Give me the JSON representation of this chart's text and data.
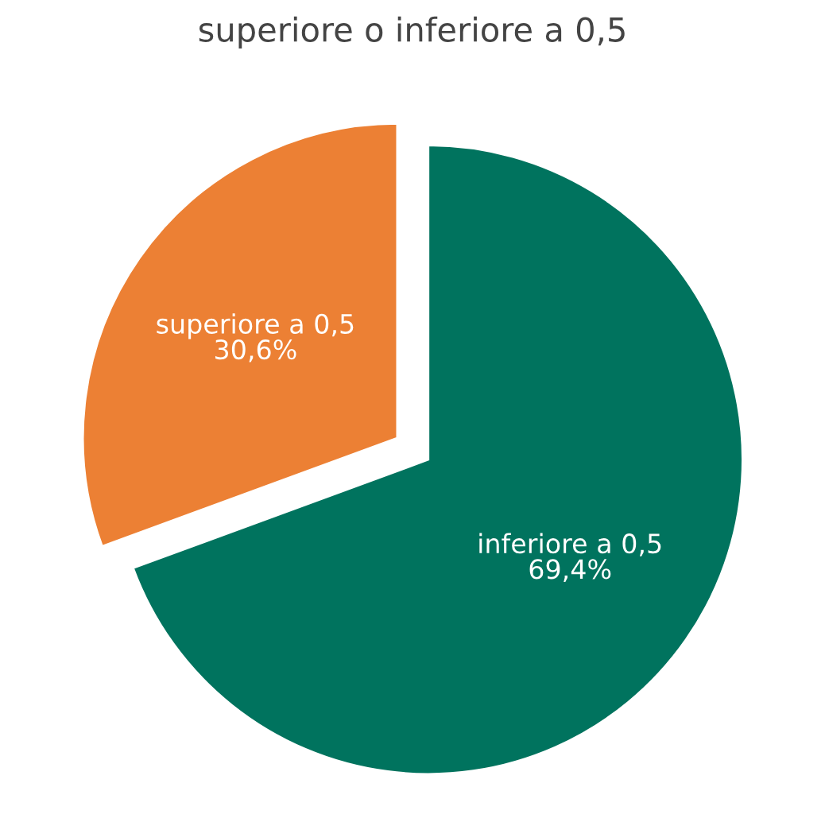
{
  "chart_data": {
    "type": "pie",
    "title": "superiore o inferiore a 0,5",
    "categories": [
      "inferiore a 0,5",
      "superiore a 0,5"
    ],
    "values": [
      69.4,
      30.6
    ],
    "colors": [
      "#00735e",
      "#ec8034"
    ],
    "value_labels": [
      "69,4%",
      "30,6%"
    ]
  }
}
